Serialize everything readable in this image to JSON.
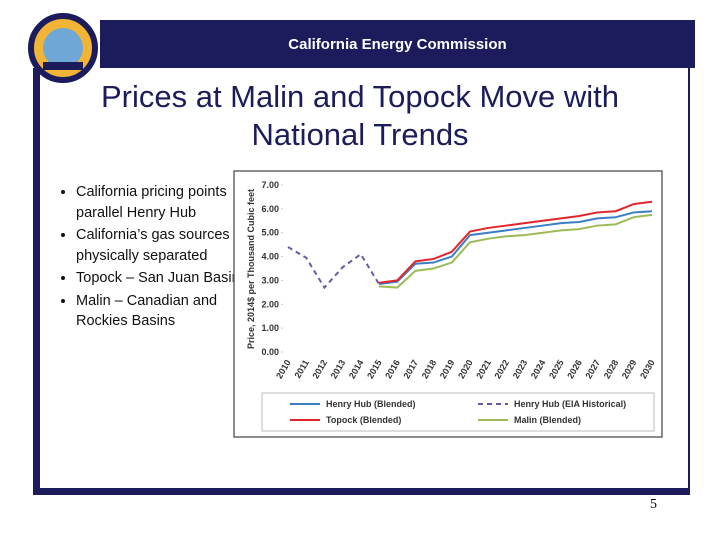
{
  "header": {
    "title": "California Energy Commission"
  },
  "slide_title": "Prices at Malin and Topock Move with National Trends",
  "bullets": [
    "California pricing points parallel  Henry Hub",
    "California’s gas sources are physically separated",
    "Topock – San Juan Basin",
    "Malin – Canadian and Rockies Basins"
  ],
  "page_number": "5",
  "chart_data": {
    "type": "line",
    "y_label": "Price, 2014$ per Thousand Cubic feet",
    "categories": [
      "2010",
      "2011",
      "2012",
      "2013",
      "2014",
      "2015",
      "2016",
      "2017",
      "2018",
      "2019",
      "2020",
      "2021",
      "2022",
      "2023",
      "2024",
      "2025",
      "2026",
      "2027",
      "2028",
      "2029",
      "2030"
    ],
    "ylim": [
      0,
      7
    ],
    "yticks": [
      {
        "value": 0,
        "label": "0.00"
      },
      {
        "value": 1,
        "label": "1.00"
      },
      {
        "value": 2,
        "label": "2.00"
      },
      {
        "value": 3,
        "label": "3.00"
      },
      {
        "value": 4,
        "label": "4.00"
      },
      {
        "value": 5,
        "label": "5.00"
      },
      {
        "value": 6,
        "label": "6.00"
      },
      {
        "value": 7,
        "label": "7.00"
      }
    ],
    "series": [
      {
        "name": "Henry Hub (Blended)",
        "color": "#3a7fc4",
        "dashed": false,
        "values": [
          null,
          null,
          null,
          null,
          null,
          2.85,
          2.95,
          3.7,
          3.75,
          4.0,
          4.9,
          5.0,
          5.1,
          5.2,
          5.3,
          5.4,
          5.45,
          5.6,
          5.65,
          5.85,
          5.9
        ]
      },
      {
        "name": "Henry Hub (EIA Historical)",
        "color": "#6a5aa0",
        "dashed": true,
        "values": [
          4.4,
          3.95,
          2.7,
          3.55,
          4.1,
          2.85,
          null,
          null,
          null,
          null,
          null,
          null,
          null,
          null,
          null,
          null,
          null,
          null,
          null,
          null,
          null
        ]
      },
      {
        "name": "Topock (Blended)",
        "color": "#e0262b",
        "dashed": false,
        "values": [
          null,
          null,
          null,
          null,
          null,
          2.9,
          3.0,
          3.8,
          3.9,
          4.2,
          5.05,
          5.2,
          5.3,
          5.4,
          5.5,
          5.6,
          5.7,
          5.85,
          5.9,
          6.2,
          6.3
        ]
      },
      {
        "name": "Malin (Blended)",
        "color": "#9bbb59",
        "dashed": false,
        "values": [
          null,
          null,
          null,
          null,
          null,
          2.75,
          2.7,
          3.4,
          3.5,
          3.75,
          4.6,
          4.75,
          4.85,
          4.9,
          5.0,
          5.1,
          5.15,
          5.3,
          5.35,
          5.65,
          5.75
        ]
      }
    ]
  }
}
